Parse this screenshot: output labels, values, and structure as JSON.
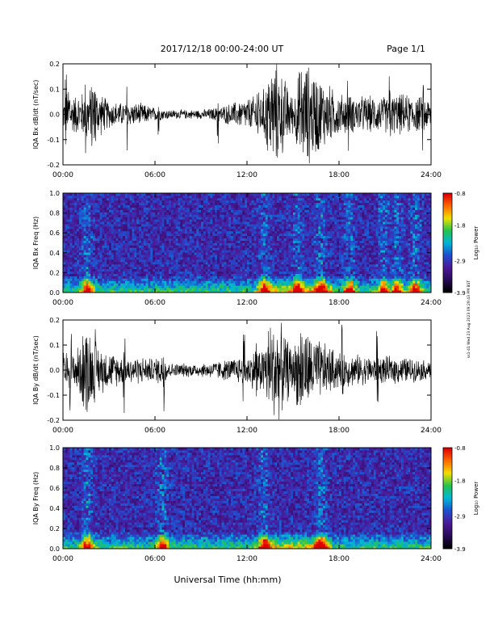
{
  "header": {
    "title": "2017/12/18  00:00-24:00 UT",
    "page": "Page 1/1"
  },
  "footer": {
    "xlabel": "Universal Time (hh:mm)"
  },
  "side_stamp": "ss1-41 Wed 23 Aug 2023 09:29:43 PM BST",
  "colors": {
    "trace": "#000000",
    "colormap": [
      "#000000",
      "#2a0a5a",
      "#4b1a9a",
      "#1f4fd0",
      "#00b7d8",
      "#27c24a",
      "#f0e000",
      "#ff6a00",
      "#e00000"
    ]
  },
  "chart_data": [
    {
      "type": "line",
      "name": "bx-dbdt",
      "ylabel": "IQA Bx dB/dt (nT/sec)",
      "ylim": [
        -0.2,
        0.2
      ],
      "yticks": [
        "-0.2",
        "-0.1",
        "0.0",
        "0.1",
        "0.2"
      ],
      "xlim_hours": [
        0,
        24
      ],
      "xticks": [
        "00:00",
        "06:00",
        "12:00",
        "18:00",
        "24:00"
      ],
      "envelope": {
        "hours": [
          0,
          1,
          2,
          3,
          4,
          5,
          6,
          7,
          8,
          9,
          10,
          11,
          12,
          13,
          13.5,
          14,
          15,
          15.5,
          16,
          17,
          18,
          19,
          20,
          21,
          22,
          23,
          24
        ],
        "amplitude": [
          0.07,
          0.09,
          0.12,
          0.06,
          0.05,
          0.05,
          0.03,
          0.02,
          0.02,
          0.02,
          0.03,
          0.05,
          0.07,
          0.09,
          0.22,
          0.22,
          0.08,
          0.22,
          0.22,
          0.15,
          0.09,
          0.08,
          0.08,
          0.08,
          0.09,
          0.08,
          0.07
        ]
      },
      "bursts_hours": [
        0.2,
        0.4,
        1.5,
        1.9,
        2.1,
        4.2,
        6.2,
        10.1,
        12.7,
        18.6,
        21.3,
        23.5
      ]
    },
    {
      "type": "heatmap",
      "name": "bx-spectrogram",
      "ylabel": "IQA Bx Freq (Hz)",
      "ylim": [
        0.0,
        1.0
      ],
      "yticks": [
        "0.0",
        "0.2",
        "0.4",
        "0.6",
        "0.8",
        "1.0"
      ],
      "xticks": [
        "00:00",
        "06:00",
        "12:00",
        "18:00",
        "24:00"
      ],
      "colorbar": {
        "label": "Log₁₀ Power",
        "range": [
          -3.9,
          -0.8
        ],
        "ticks": [
          "-0.8",
          "-1.8",
          "-2.9",
          "-3.9"
        ]
      },
      "enhanced_hours": [
        1.6,
        13.1,
        15.3,
        16.8,
        18.7,
        20.9,
        21.8,
        23.0
      ]
    },
    {
      "type": "line",
      "name": "by-dbdt",
      "ylabel": "IQA By dB/dt (nT/sec)",
      "ylim": [
        -0.2,
        0.2
      ],
      "yticks": [
        "-0.2",
        "-0.1",
        "0.0",
        "0.1",
        "0.2"
      ],
      "xlim_hours": [
        0,
        24
      ],
      "xticks": [
        "00:00",
        "06:00",
        "12:00",
        "18:00",
        "24:00"
      ],
      "envelope": {
        "hours": [
          0,
          1,
          1.5,
          2,
          3,
          4,
          5,
          6,
          6.5,
          7,
          8,
          9,
          10,
          11,
          12,
          13,
          13.5,
          14,
          15,
          15.5,
          16,
          17,
          18,
          19,
          20,
          21,
          22,
          23,
          24
        ],
        "amplitude": [
          0.08,
          0.1,
          0.22,
          0.12,
          0.08,
          0.06,
          0.06,
          0.05,
          0.08,
          0.03,
          0.03,
          0.03,
          0.04,
          0.05,
          0.07,
          0.1,
          0.22,
          0.22,
          0.09,
          0.22,
          0.16,
          0.12,
          0.08,
          0.07,
          0.06,
          0.06,
          0.06,
          0.05,
          0.04
        ]
      },
      "bursts_hours": [
        0.5,
        1.7,
        2.1,
        4.0,
        6.6,
        11.8,
        12.6,
        18.2,
        20.5
      ]
    },
    {
      "type": "heatmap",
      "name": "by-spectrogram",
      "ylabel": "IQA By Freq (Hz)",
      "ylim": [
        0.0,
        1.0
      ],
      "yticks": [
        "0.0",
        "0.2",
        "0.4",
        "0.6",
        "0.8",
        "1.0"
      ],
      "xticks": [
        "00:00",
        "06:00",
        "12:00",
        "18:00",
        "24:00"
      ],
      "colorbar": {
        "label": "Log₁₀ Power",
        "range": [
          -3.9,
          -0.8
        ],
        "ticks": [
          "-0.8",
          "-1.8",
          "-2.9",
          "-3.9"
        ]
      },
      "enhanced_hours": [
        1.6,
        6.5,
        13.1,
        16.8
      ]
    }
  ]
}
